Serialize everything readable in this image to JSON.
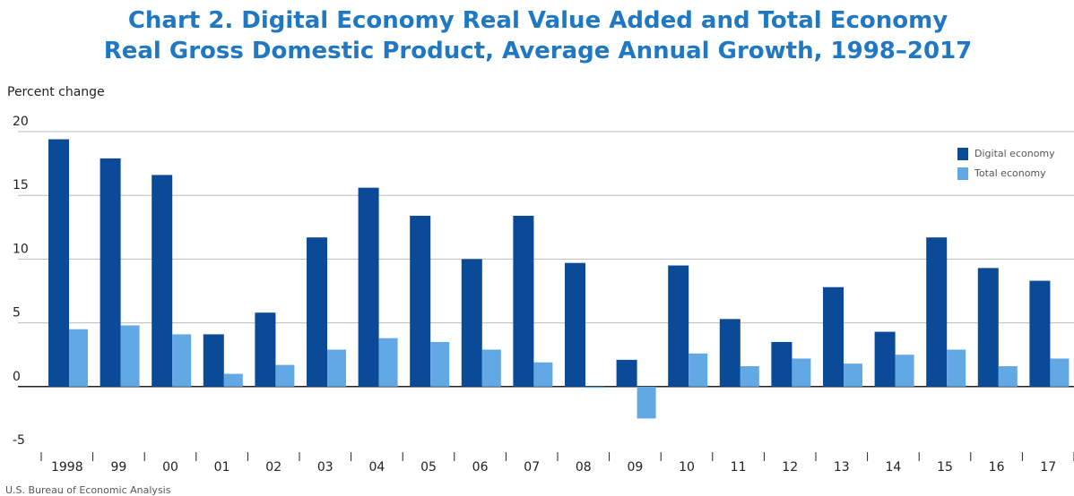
{
  "chart_data": {
    "type": "bar",
    "title": "Chart 2. Digital Economy Real Value Added and Total Economy Real Gross Domestic Product, Average Annual Growth, 1998–2017",
    "y_label": "Percent change",
    "source": "U.S. Bureau of Economic Analysis",
    "categories": [
      "1998",
      "99",
      "00",
      "01",
      "02",
      "03",
      "04",
      "05",
      "06",
      "07",
      "08",
      "09",
      "10",
      "11",
      "12",
      "13",
      "14",
      "15",
      "16",
      "17"
    ],
    "series": [
      {
        "name": "Digital economy",
        "color": "#0a4a97",
        "values": [
          19.4,
          17.9,
          16.6,
          4.1,
          5.8,
          11.7,
          15.6,
          13.4,
          10.0,
          13.4,
          9.7,
          2.1,
          9.5,
          5.3,
          3.5,
          7.8,
          4.3,
          11.7,
          9.3,
          8.3
        ]
      },
      {
        "name": "Total economy",
        "color": "#62a8e5",
        "values": [
          4.5,
          4.8,
          4.1,
          1.0,
          1.7,
          2.9,
          3.8,
          3.5,
          2.9,
          1.9,
          -0.1,
          -2.5,
          2.6,
          1.6,
          2.2,
          1.8,
          2.5,
          2.9,
          1.6,
          2.2
        ]
      }
    ],
    "ylim": [
      -5,
      20
    ],
    "yticks": [
      -5,
      0,
      5,
      10,
      15,
      20
    ],
    "grid": true,
    "legend": "upper right"
  }
}
